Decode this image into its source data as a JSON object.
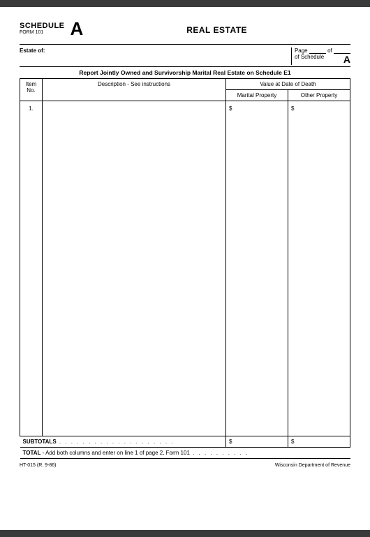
{
  "header": {
    "schedule_label": "SCHEDULE",
    "form_label": "FORM 101",
    "big_letter": "A",
    "title": "REAL ESTATE"
  },
  "estate_row": {
    "estate_of": "Estate of:",
    "page_label": "Page",
    "of_label": "of",
    "of_schedule": "of Schedule",
    "a_right": "A"
  },
  "report_line": "Report Jointly Owned and Survivorship Marital Real Estate on Schedule E1",
  "columns": {
    "item_no": "Item No.",
    "description": "Description - See instructions",
    "value_header": "Value at Date of Death",
    "marital": "Marital Property",
    "other": "Other Property"
  },
  "body": {
    "item_number": "1.",
    "dollar": "$"
  },
  "subtotals": {
    "label": "SUBTOTALS",
    "marital_dollar": "$",
    "other_dollar": "$"
  },
  "total": {
    "label": "TOTAL",
    "sub": " - Add both columns and enter on line 1 of page 2, Form 101"
  },
  "footer": {
    "form_code": "HT-015  (R. 9-86)",
    "dept": "Wisconsin Department of Revenue"
  }
}
